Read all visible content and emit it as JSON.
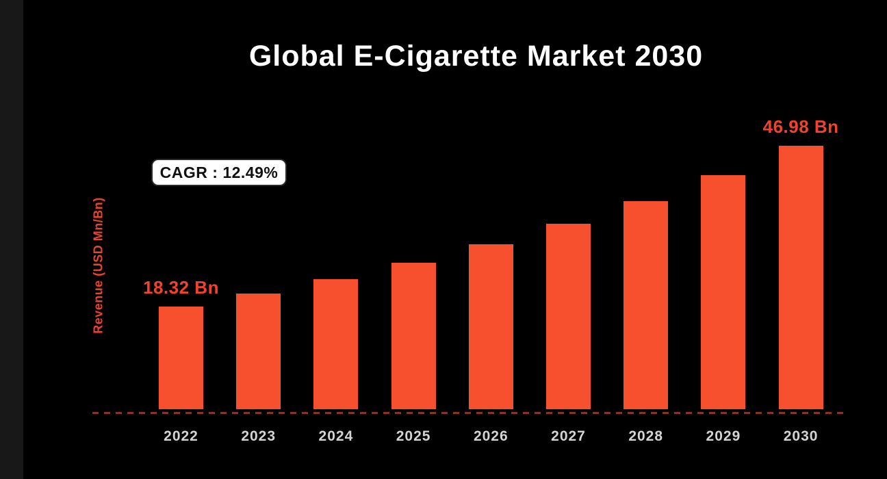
{
  "page": {
    "background_color": "#000000",
    "left_strip_color": "#181818"
  },
  "header": {
    "title": "Global E-Cigarette Market 2030"
  },
  "annotations": {
    "cagr_badge": "CAGR : 12.49%"
  },
  "chart_data": {
    "type": "bar",
    "title": "Global E-Cigarette Market 2030",
    "xlabel": "",
    "ylabel": "Revenue (USD Mn/Bn)",
    "categories": [
      "2022",
      "2023",
      "2024",
      "2025",
      "2026",
      "2027",
      "2028",
      "2029",
      "2030"
    ],
    "values": [
      18.32,
      20.61,
      23.18,
      26.08,
      29.34,
      33.0,
      37.12,
      41.76,
      46.98
    ],
    "unit": "Bn",
    "ylim": [
      0,
      50
    ],
    "grid": false,
    "legend_position": "none",
    "cagr_percent": "12.49%",
    "data_labels": [
      {
        "category": "2022",
        "text": "18.32 Bn"
      },
      {
        "category": "2030",
        "text": "46.98 Bn"
      }
    ],
    "colors": {
      "bar": "#f7502e",
      "value_label": "#f2422e",
      "axis_label": "#e8452e",
      "tick_label": "#d4d4d4",
      "title": "#ffffff",
      "baseline_dash": "rgba(243,94,72,0.55)"
    },
    "baseline_style": "dashed"
  }
}
